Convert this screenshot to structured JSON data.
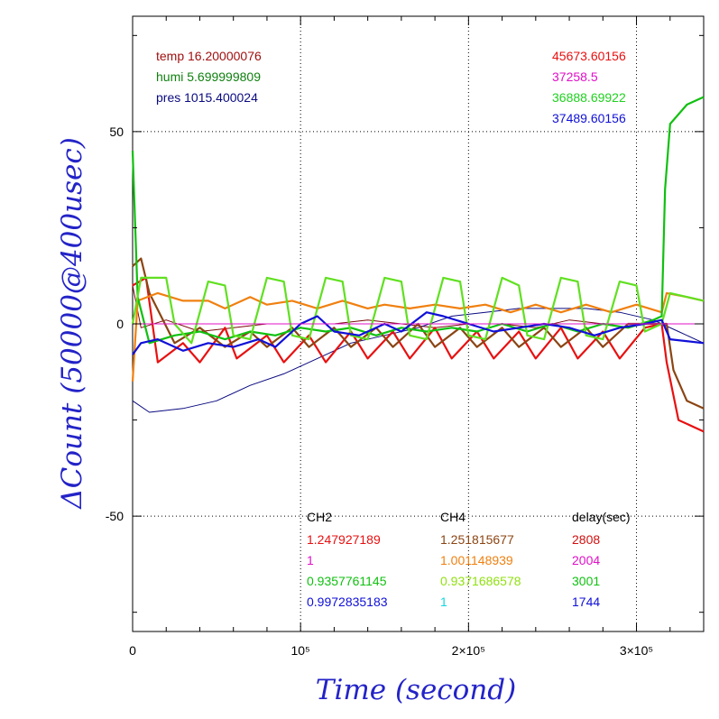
{
  "chart_data": {
    "type": "line",
    "xlabel": "Time (second)",
    "ylabel": "ΔCount (50000@400usec)",
    "xlim": [
      0,
      340000
    ],
    "ylim": [
      -80,
      80
    ],
    "x_ticks": [
      {
        "value": 0,
        "label": "0"
      },
      {
        "value": 100000,
        "label": "10⁵"
      },
      {
        "value": 200000,
        "label": "2×10⁵"
      },
      {
        "value": 300000,
        "label": "3×10⁵"
      }
    ],
    "y_ticks": [
      {
        "value": 50,
        "label": "50"
      },
      {
        "value": 0,
        "label": "0"
      },
      {
        "value": -50,
        "label": "-50"
      }
    ],
    "grid": true,
    "env_labels": [
      {
        "text": "temp 16.20000076",
        "color": "#a01010"
      },
      {
        "text": "humi 5.699999809",
        "color": "#108010"
      },
      {
        "text": "pres 1015.400024",
        "color": "#0a0a80"
      }
    ],
    "count_labels": [
      {
        "text": "45673.60156",
        "color": "#e81010"
      },
      {
        "text": "37258.5",
        "color": "#e010c8"
      },
      {
        "text": "36888.69922",
        "color": "#20d020"
      },
      {
        "text": "37489.60156",
        "color": "#1010d8"
      }
    ],
    "table_headers": [
      "CH2",
      "CH4",
      "delay(sec)"
    ],
    "table_rows": [
      {
        "ch2": "1.247927189",
        "ch4": "1.251815677",
        "delay": "2808",
        "c2": "#e81010",
        "c4": "#8b4513",
        "cd": "#d01010"
      },
      {
        "ch2": "1",
        "ch4": "1.001148939",
        "delay": "2004",
        "c2": "#e010c8",
        "c4": "#f08010",
        "cd": "#e010c8"
      },
      {
        "ch2": "0.9357761145",
        "ch4": "0.9371686578",
        "delay": "3001",
        "c2": "#10c010",
        "c4": "#90e010",
        "cd": "#10c010"
      },
      {
        "ch2": "0.9972835183",
        "ch4": "1",
        "delay": "1744",
        "c2": "#1010d8",
        "c4": "#10d8e0",
        "cd": "#1010d8"
      }
    ],
    "series": [
      {
        "color": "#7a0a0a",
        "values_at": [
          [
            0,
            10
          ],
          [
            5000,
            -1
          ],
          [
            20000,
            1
          ],
          [
            40000,
            -2
          ],
          [
            60000,
            -1
          ],
          [
            80000,
            0
          ],
          [
            100000,
            0
          ],
          [
            120000,
            0
          ],
          [
            140000,
            1
          ],
          [
            160000,
            0
          ],
          [
            180000,
            -1
          ],
          [
            200000,
            0
          ],
          [
            220000,
            0
          ],
          [
            240000,
            -1
          ],
          [
            260000,
            1
          ],
          [
            280000,
            0
          ],
          [
            300000,
            0
          ],
          [
            320000,
            0
          ],
          [
            340000,
            0
          ]
        ]
      },
      {
        "color": "#0a0a80",
        "values_at": [
          [
            0,
            -20
          ],
          [
            10000,
            -23
          ],
          [
            30000,
            -22
          ],
          [
            50000,
            -20
          ],
          [
            70000,
            -16
          ],
          [
            90000,
            -13
          ],
          [
            110000,
            -9
          ],
          [
            130000,
            -5
          ],
          [
            150000,
            -3
          ],
          [
            170000,
            -1
          ],
          [
            190000,
            2
          ],
          [
            210000,
            3
          ],
          [
            230000,
            4
          ],
          [
            250000,
            4
          ],
          [
            270000,
            4
          ],
          [
            290000,
            3
          ],
          [
            310000,
            1
          ],
          [
            325000,
            -2
          ],
          [
            340000,
            -5
          ]
        ]
      },
      {
        "color": "#e81010",
        "values_at": [
          [
            0,
            10
          ],
          [
            8000,
            12
          ],
          [
            15000,
            -10
          ],
          [
            30000,
            -5
          ],
          [
            40000,
            -10
          ],
          [
            55000,
            -1
          ],
          [
            62000,
            -9
          ],
          [
            80000,
            -3
          ],
          [
            90000,
            -10
          ],
          [
            105000,
            -3
          ],
          [
            115000,
            -10
          ],
          [
            130000,
            -2
          ],
          [
            140000,
            -9
          ],
          [
            155000,
            -2
          ],
          [
            165000,
            -9
          ],
          [
            180000,
            -1
          ],
          [
            190000,
            -9
          ],
          [
            205000,
            -2
          ],
          [
            215000,
            -9
          ],
          [
            230000,
            -2
          ],
          [
            240000,
            -9
          ],
          [
            255000,
            -1
          ],
          [
            265000,
            -9
          ],
          [
            280000,
            -2
          ],
          [
            290000,
            -9
          ],
          [
            305000,
            -1
          ],
          [
            315000,
            0
          ],
          [
            318000,
            -10
          ],
          [
            325000,
            -25
          ],
          [
            340000,
            -28
          ]
        ]
      },
      {
        "color": "#8b4513",
        "values_at": [
          [
            0,
            15
          ],
          [
            5000,
            17
          ],
          [
            10000,
            8
          ],
          [
            25000,
            -5
          ],
          [
            40000,
            -1
          ],
          [
            55000,
            -6
          ],
          [
            70000,
            -2
          ],
          [
            80000,
            -6
          ],
          [
            95000,
            -1
          ],
          [
            105000,
            -6
          ],
          [
            120000,
            -1
          ],
          [
            130000,
            -6
          ],
          [
            145000,
            -1
          ],
          [
            155000,
            -6
          ],
          [
            170000,
            0
          ],
          [
            180000,
            -6
          ],
          [
            195000,
            -1
          ],
          [
            205000,
            -6
          ],
          [
            220000,
            -1
          ],
          [
            230000,
            -6
          ],
          [
            245000,
            -1
          ],
          [
            255000,
            -6
          ],
          [
            270000,
            -1
          ],
          [
            280000,
            -6
          ],
          [
            295000,
            0
          ],
          [
            310000,
            0
          ],
          [
            318000,
            0
          ],
          [
            322000,
            -12
          ],
          [
            330000,
            -20
          ],
          [
            340000,
            -22
          ]
        ]
      },
      {
        "color": "#f08010",
        "values_at": [
          [
            0,
            -15
          ],
          [
            3000,
            6
          ],
          [
            15000,
            8
          ],
          [
            30000,
            6
          ],
          [
            45000,
            6
          ],
          [
            55000,
            4
          ],
          [
            70000,
            7
          ],
          [
            80000,
            5
          ],
          [
            95000,
            6
          ],
          [
            110000,
            4
          ],
          [
            125000,
            6
          ],
          [
            140000,
            4
          ],
          [
            150000,
            5
          ],
          [
            165000,
            4
          ],
          [
            180000,
            5
          ],
          [
            195000,
            4
          ],
          [
            210000,
            5
          ],
          [
            225000,
            3
          ],
          [
            240000,
            5
          ],
          [
            255000,
            3
          ],
          [
            270000,
            5
          ],
          [
            285000,
            3
          ],
          [
            300000,
            5
          ],
          [
            315000,
            3
          ],
          [
            318000,
            8
          ],
          [
            330000,
            7
          ],
          [
            340000,
            6
          ]
        ]
      },
      {
        "color": "#10c010",
        "values_at": [
          [
            0,
            45
          ],
          [
            3000,
            7
          ],
          [
            10000,
            -5
          ],
          [
            25000,
            -3
          ],
          [
            40000,
            -2
          ],
          [
            55000,
            -4
          ],
          [
            70000,
            -2
          ],
          [
            85000,
            -3
          ],
          [
            100000,
            -1
          ],
          [
            115000,
            -2
          ],
          [
            130000,
            -1
          ],
          [
            145000,
            -3
          ],
          [
            160000,
            -1
          ],
          [
            175000,
            -2
          ],
          [
            190000,
            -1
          ],
          [
            205000,
            -2
          ],
          [
            220000,
            0
          ],
          [
            235000,
            -2
          ],
          [
            250000,
            0
          ],
          [
            265000,
            -2
          ],
          [
            280000,
            0
          ],
          [
            295000,
            -1
          ],
          [
            310000,
            1
          ],
          [
            315000,
            2
          ],
          [
            317000,
            35
          ],
          [
            320000,
            52
          ],
          [
            330000,
            57
          ],
          [
            340000,
            59
          ]
        ]
      },
      {
        "color": "#60e020",
        "values_at": [
          [
            0,
            0
          ],
          [
            5000,
            12
          ],
          [
            20000,
            12
          ],
          [
            25000,
            0
          ],
          [
            35000,
            -5
          ],
          [
            45000,
            11
          ],
          [
            55000,
            10
          ],
          [
            60000,
            -3
          ],
          [
            70000,
            -4
          ],
          [
            80000,
            12
          ],
          [
            90000,
            11
          ],
          [
            95000,
            -3
          ],
          [
            105000,
            -4
          ],
          [
            115000,
            12
          ],
          [
            125000,
            11
          ],
          [
            130000,
            -3
          ],
          [
            140000,
            -4
          ],
          [
            150000,
            12
          ],
          [
            160000,
            11
          ],
          [
            165000,
            -3
          ],
          [
            175000,
            -4
          ],
          [
            185000,
            12
          ],
          [
            195000,
            11
          ],
          [
            200000,
            -3
          ],
          [
            210000,
            -4
          ],
          [
            220000,
            12
          ],
          [
            230000,
            10
          ],
          [
            235000,
            -3
          ],
          [
            245000,
            -4
          ],
          [
            255000,
            12
          ],
          [
            265000,
            11
          ],
          [
            270000,
            -3
          ],
          [
            280000,
            -4
          ],
          [
            290000,
            11
          ],
          [
            300000,
            10
          ],
          [
            305000,
            -2
          ],
          [
            315000,
            0
          ],
          [
            320000,
            8
          ],
          [
            340000,
            6
          ]
        ]
      },
      {
        "color": "#1010d8",
        "values_at": [
          [
            0,
            -8
          ],
          [
            5000,
            -5
          ],
          [
            15000,
            -4
          ],
          [
            30000,
            -7
          ],
          [
            45000,
            -5
          ],
          [
            60000,
            -6
          ],
          [
            75000,
            -4
          ],
          [
            85000,
            -6
          ],
          [
            100000,
            0
          ],
          [
            110000,
            2
          ],
          [
            120000,
            -2
          ],
          [
            135000,
            -3
          ],
          [
            150000,
            0
          ],
          [
            160000,
            -2
          ],
          [
            175000,
            3
          ],
          [
            185000,
            2
          ],
          [
            200000,
            0
          ],
          [
            215000,
            -2
          ],
          [
            230000,
            -1
          ],
          [
            245000,
            0
          ],
          [
            260000,
            -1
          ],
          [
            275000,
            -3
          ],
          [
            290000,
            -1
          ],
          [
            305000,
            0
          ],
          [
            315000,
            1
          ],
          [
            320000,
            -4
          ],
          [
            340000,
            -5
          ]
        ]
      },
      {
        "color": "#e010c8",
        "values_at": [
          [
            0,
            0
          ],
          [
            340000,
            0
          ]
        ]
      }
    ]
  }
}
